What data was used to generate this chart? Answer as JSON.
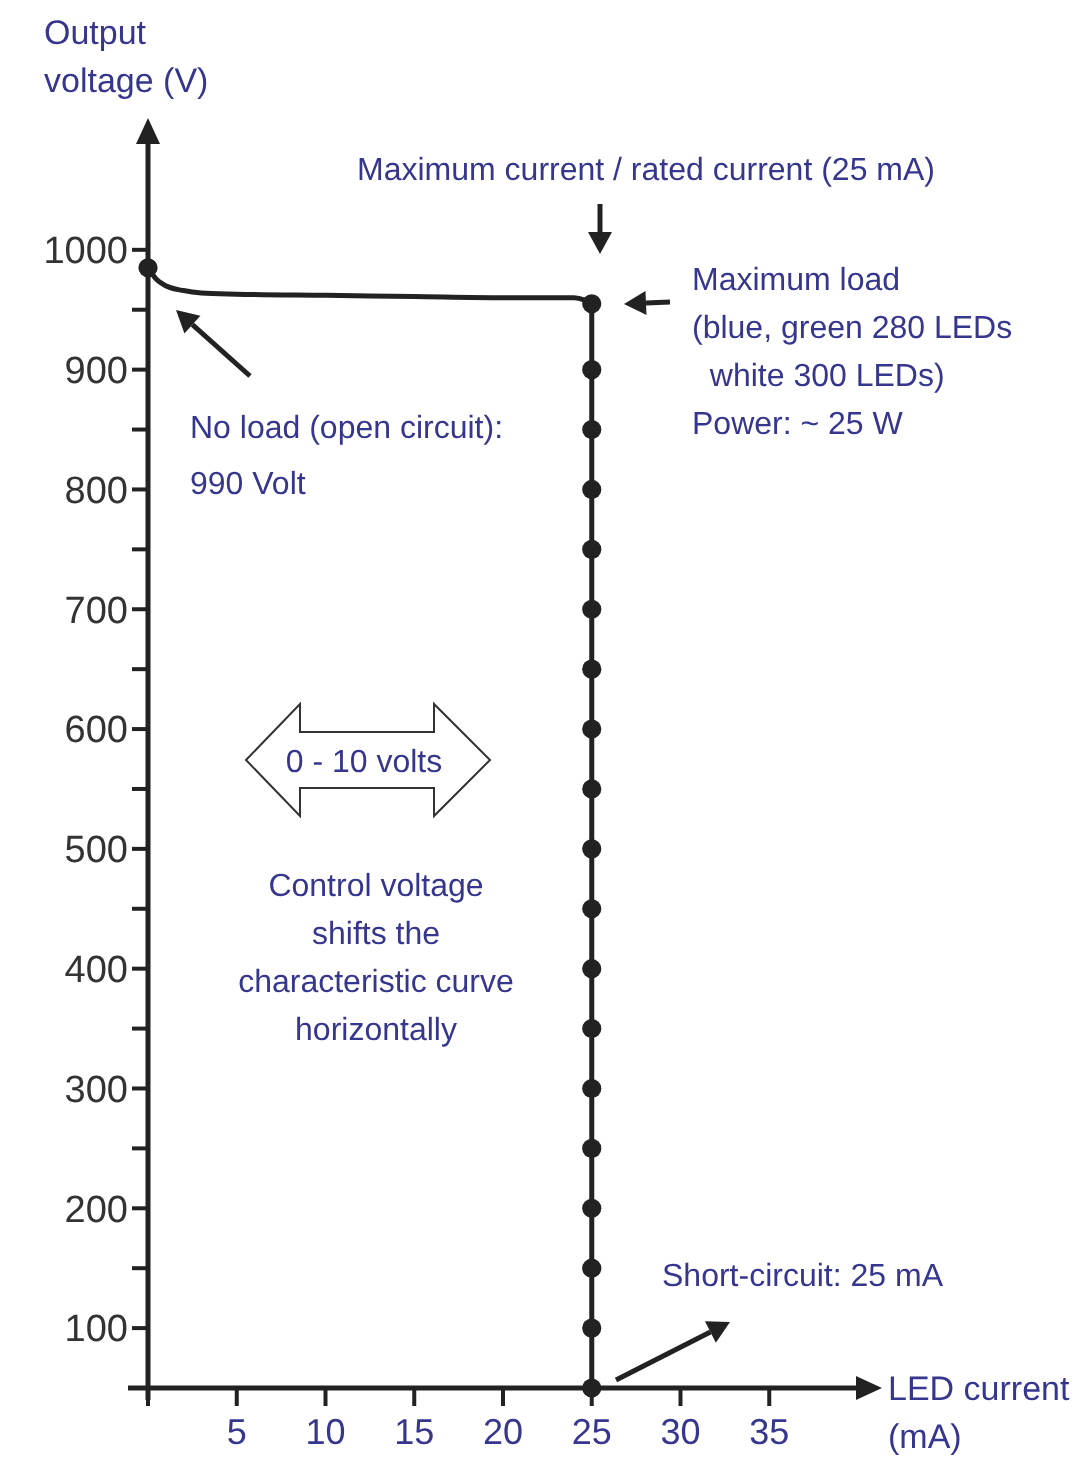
{
  "chart_data": {
    "type": "line",
    "xlabel": "LED current\n(mA)",
    "ylabel": "Output\nvoltage (V)",
    "xlim": [
      0,
      40
    ],
    "ylim": [
      50,
      1090
    ],
    "xticks": [
      {
        "value": 0,
        "label": null
      },
      5,
      10,
      15,
      20,
      25,
      30,
      35
    ],
    "yticks": [
      {
        "value": 50,
        "label": null
      },
      100,
      {
        "value": 150,
        "label": null
      },
      200,
      {
        "value": 250,
        "label": null
      },
      300,
      {
        "value": 350,
        "label": null
      },
      400,
      {
        "value": 450,
        "label": null
      },
      500,
      {
        "value": 550,
        "label": null
      },
      600,
      {
        "value": 650,
        "label": null
      },
      700,
      {
        "value": 750,
        "label": null
      },
      800,
      {
        "value": 850,
        "label": null
      },
      900,
      {
        "value": 950,
        "label": null
      },
      1000
    ],
    "series": [
      {
        "color": "#222222",
        "marker": "none",
        "x": [
          0,
          0.5,
          1,
          2,
          3,
          5,
          10,
          15,
          20,
          24,
          24.6,
          25
        ],
        "values": [
          985,
          975,
          970,
          966,
          964,
          963,
          962,
          961,
          960,
          960,
          958,
          955
        ]
      },
      {
        "color": "#222222",
        "marker": "circle",
        "x": [
          25,
          25,
          25,
          25,
          25,
          25,
          25,
          25,
          25,
          25,
          25,
          25,
          25,
          25,
          25,
          25,
          25,
          25,
          25
        ],
        "values": [
          955,
          900,
          850,
          800,
          750,
          700,
          650,
          600,
          550,
          500,
          450,
          400,
          350,
          300,
          250,
          200,
          150,
          100,
          50
        ]
      },
      {
        "type": "scatter",
        "color": "#222222",
        "marker": "circle",
        "x": [
          0
        ],
        "values": [
          985
        ]
      }
    ],
    "annotations": [
      "Maximum current / rated current (25 mA)",
      "No load (open circuit):\n990 Volt",
      "Maximum load\n(blue, green 280 LEDs\n  white 300 LEDs)\nPower: ~ 25 W",
      "Short-circuit: 25 mA",
      "0 - 10 volts",
      "Control voltage\nshifts the\ncharacteristic curve\nhorizontally"
    ]
  }
}
